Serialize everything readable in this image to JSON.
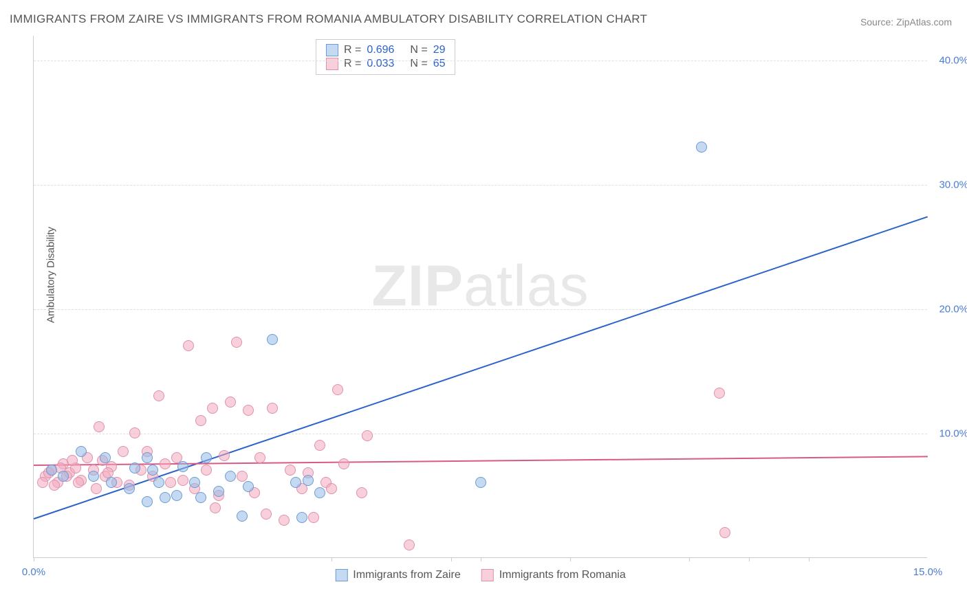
{
  "title": "IMMIGRANTS FROM ZAIRE VS IMMIGRANTS FROM ROMANIA AMBULATORY DISABILITY CORRELATION CHART",
  "source_prefix": "Source: ",
  "source": "ZipAtlas.com",
  "ylabel": "Ambulatory Disability",
  "watermark_bold": "ZIP",
  "watermark_light": "atlas",
  "chart": {
    "type": "scatter",
    "xlim": [
      0,
      15
    ],
    "ylim": [
      0,
      42
    ],
    "xtick_labels": [
      {
        "v": 0,
        "label": "0.0%"
      },
      {
        "v": 15,
        "label": "15.0%"
      }
    ],
    "xtick_marks": [
      0,
      5,
      7,
      7.5,
      9,
      11,
      12,
      13
    ],
    "ytick_labels": [
      {
        "v": 10,
        "label": "10.0%"
      },
      {
        "v": 20,
        "label": "20.0%"
      },
      {
        "v": 30,
        "label": "30.0%"
      },
      {
        "v": 40,
        "label": "40.0%"
      }
    ],
    "grid_y": [
      10,
      20,
      30,
      40
    ],
    "grid_color": "#e0e0e0",
    "background_color": "#ffffff",
    "series": {
      "zaire": {
        "label": "Immigrants from Zaire",
        "fill": "rgba(150,185,230,0.55)",
        "stroke": "#6b9bd8",
        "trend": {
          "x1": 0,
          "y1": 3.2,
          "x2": 15,
          "y2": 27.5,
          "color": "#2a62c9",
          "width": 2
        },
        "points": [
          [
            0.3,
            7.0
          ],
          [
            0.8,
            8.5
          ],
          [
            1.0,
            6.5
          ],
          [
            1.2,
            8.0
          ],
          [
            1.3,
            6.0
          ],
          [
            1.6,
            5.5
          ],
          [
            1.7,
            7.2
          ],
          [
            1.9,
            8.0
          ],
          [
            1.9,
            4.5
          ],
          [
            2.0,
            7.0
          ],
          [
            2.1,
            6.0
          ],
          [
            2.2,
            4.8
          ],
          [
            2.4,
            5.0
          ],
          [
            2.5,
            7.3
          ],
          [
            2.7,
            6.0
          ],
          [
            2.8,
            4.8
          ],
          [
            2.9,
            8.0
          ],
          [
            3.1,
            5.3
          ],
          [
            3.3,
            6.5
          ],
          [
            3.5,
            3.3
          ],
          [
            3.6,
            5.7
          ],
          [
            4.0,
            17.5
          ],
          [
            4.4,
            6.0
          ],
          [
            4.5,
            3.2
          ],
          [
            4.6,
            6.2
          ],
          [
            4.8,
            5.2
          ],
          [
            7.5,
            6.0
          ],
          [
            11.2,
            33.0
          ],
          [
            0.5,
            6.5
          ]
        ]
      },
      "romania": {
        "label": "Immigrants from Romania",
        "fill": "rgba(240,170,190,0.55)",
        "stroke": "#e290aa",
        "trend": {
          "x1": 0,
          "y1": 7.5,
          "x2": 15,
          "y2": 8.2,
          "color": "#d85a85",
          "width": 2
        },
        "points": [
          [
            0.2,
            6.5
          ],
          [
            0.3,
            7.0
          ],
          [
            0.4,
            6.0
          ],
          [
            0.5,
            7.5
          ],
          [
            0.6,
            6.8
          ],
          [
            0.7,
            7.2
          ],
          [
            0.8,
            6.2
          ],
          [
            0.9,
            8.0
          ],
          [
            1.0,
            7.0
          ],
          [
            1.1,
            10.5
          ],
          [
            1.2,
            6.5
          ],
          [
            1.3,
            7.3
          ],
          [
            1.4,
            6.0
          ],
          [
            1.5,
            8.5
          ],
          [
            1.6,
            5.8
          ],
          [
            1.7,
            10.0
          ],
          [
            1.8,
            7.0
          ],
          [
            1.9,
            8.5
          ],
          [
            2.0,
            6.5
          ],
          [
            2.1,
            13.0
          ],
          [
            2.2,
            7.5
          ],
          [
            2.3,
            6.0
          ],
          [
            2.4,
            8.0
          ],
          [
            2.5,
            6.2
          ],
          [
            2.6,
            17.0
          ],
          [
            2.7,
            5.5
          ],
          [
            2.8,
            11.0
          ],
          [
            2.9,
            7.0
          ],
          [
            3.0,
            12.0
          ],
          [
            3.1,
            5.0
          ],
          [
            3.2,
            8.2
          ],
          [
            3.3,
            12.5
          ],
          [
            3.4,
            17.3
          ],
          [
            3.5,
            6.5
          ],
          [
            3.6,
            11.8
          ],
          [
            3.7,
            5.2
          ],
          [
            3.8,
            8.0
          ],
          [
            3.9,
            3.5
          ],
          [
            4.0,
            12.0
          ],
          [
            4.2,
            3.0
          ],
          [
            4.3,
            7.0
          ],
          [
            4.5,
            5.5
          ],
          [
            4.6,
            6.8
          ],
          [
            4.7,
            3.2
          ],
          [
            4.8,
            9.0
          ],
          [
            4.9,
            6.0
          ],
          [
            5.0,
            5.5
          ],
          [
            5.1,
            13.5
          ],
          [
            5.2,
            7.5
          ],
          [
            5.5,
            5.2
          ],
          [
            5.6,
            9.8
          ],
          [
            6.3,
            1.0
          ],
          [
            0.15,
            6.0
          ],
          [
            0.25,
            6.8
          ],
          [
            0.35,
            5.8
          ],
          [
            0.45,
            7.2
          ],
          [
            0.55,
            6.5
          ],
          [
            0.65,
            7.8
          ],
          [
            0.75,
            6.0
          ],
          [
            1.05,
            5.5
          ],
          [
            1.15,
            7.8
          ],
          [
            3.05,
            4.0
          ],
          [
            11.5,
            13.2
          ],
          [
            11.6,
            2.0
          ],
          [
            1.25,
            6.8
          ]
        ]
      }
    }
  },
  "stats_legend": {
    "label_R": "R =",
    "label_N": "N =",
    "rows": [
      {
        "swatch_fill": "rgba(150,185,230,0.55)",
        "swatch_stroke": "#6b9bd8",
        "R": "0.696",
        "N": "29"
      },
      {
        "swatch_fill": "rgba(240,170,190,0.55)",
        "swatch_stroke": "#e290aa",
        "R": "0.033",
        "N": "65"
      }
    ]
  }
}
